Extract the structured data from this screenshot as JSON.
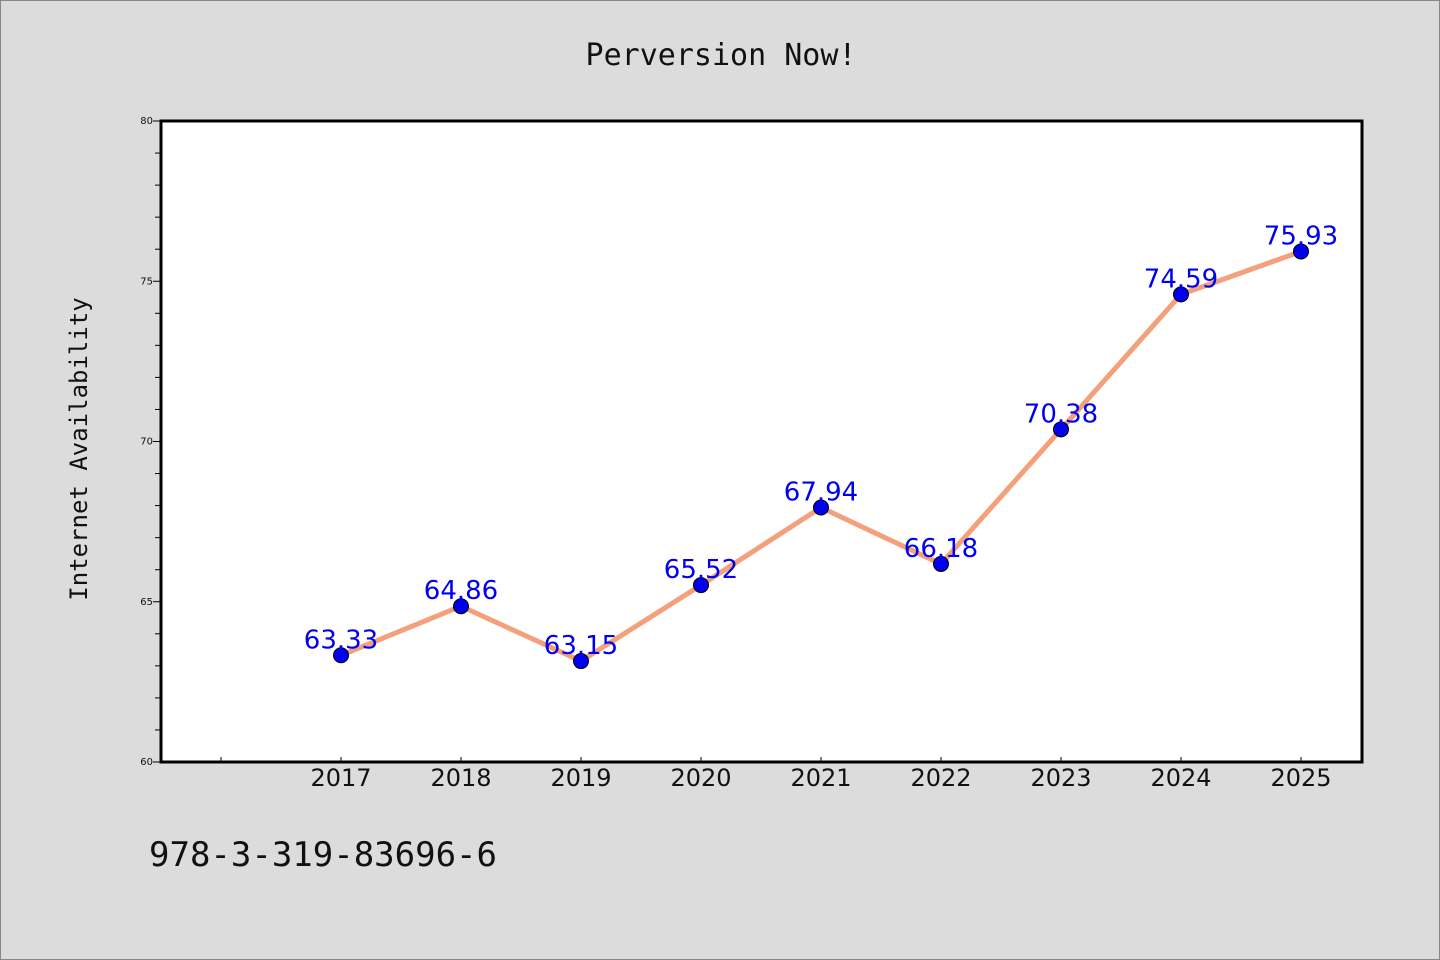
{
  "chart_data": {
    "type": "line",
    "title": "Perversion Now!",
    "xlabel": "",
    "ylabel": "Internet Availability",
    "categories": [
      "2017",
      "2018",
      "2019",
      "2020",
      "2021",
      "2022",
      "2023",
      "2024",
      "2025"
    ],
    "series": [
      {
        "values": [
          63.33,
          64.86,
          63.15,
          65.52,
          67.94,
          66.18,
          70.38,
          74.59,
          75.93
        ],
        "data_labels": [
          "63.33",
          "64.86",
          "63.15",
          "65.52",
          "67.94",
          "66.18",
          "70.38",
          "74.59",
          "75.93"
        ],
        "line_color": "#f4a07c",
        "marker_color": "#0000ee",
        "label_color": "#0000ee"
      }
    ],
    "ylim": [
      60,
      80
    ],
    "yticks": [
      "60",
      "65",
      "70",
      "75",
      "80"
    ],
    "grid": false,
    "legend": "none"
  },
  "footer": {
    "isbn": "978-3-319-83696-6"
  },
  "colors": {
    "background": "#dcdcdc",
    "plot_background": "#ffffff",
    "axis": "#000000"
  }
}
